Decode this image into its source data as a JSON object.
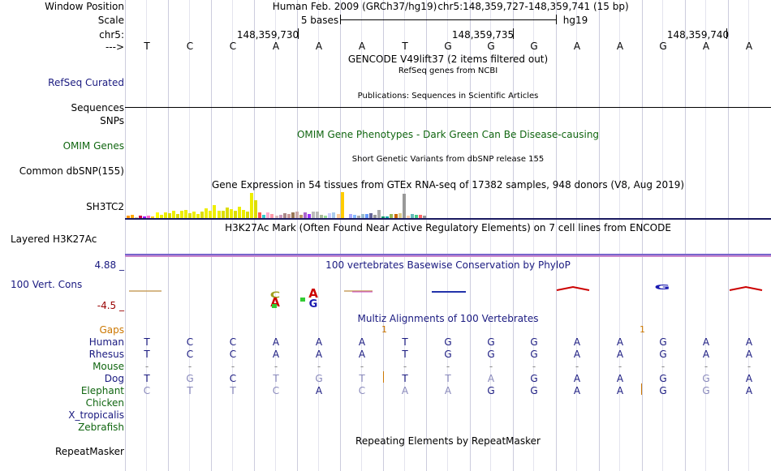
{
  "labels": {
    "window_position": "Window Position",
    "scale": "Scale",
    "chrom": "chr5:",
    "strand": "--->",
    "refseq": "RefSeq Curated",
    "sequences": "Sequences",
    "snps": "SNPs",
    "omim": "OMIM Genes",
    "dbsnp": "Common dbSNP(155)",
    "gtex_gene": "SH3TC2",
    "h3k27ac": "Layered H3K27Ac",
    "cons_max": "4.88 _",
    "cons_name": "100 Vert. Cons",
    "cons_min": "-4.5 _",
    "gaps": "Gaps",
    "repeatmasker": "RepeatMasker"
  },
  "header": {
    "assembly": "Human Feb. 2009 (GRCh37/hg19)",
    "position": "chr5:148,359,727-148,359,741 (15 bp)",
    "scale_text": "5 bases",
    "scale_db": "hg19",
    "coords": [
      "148,359,730",
      "148,359,735",
      "148,359,740"
    ]
  },
  "titles": {
    "gencode": "GENCODE V49lift37 (2 items filtered out)",
    "refseq": "RefSeq genes from NCBI",
    "publications": "Publications: Sequences in Scientific Articles",
    "omim": "OMIM Gene Phenotypes - Dark Green Can Be Disease-causing",
    "dbsnp": "Short Genetic Variants from dbSNP release 155",
    "gtex": "Gene Expression in 54 tissues from GTEx RNA-seq of 17382 samples, 948 donors (V8, Aug 2019)",
    "h3k27ac": "H3K27Ac Mark (Often Found Near Active Regulatory Elements) on 7 cell lines from ENCODE",
    "phylop": "100 vertebrates Basewise Conservation by PhyloP",
    "multiz": "Multiz Alignments of 100 Vertebrates",
    "repeatmasker": "Repeating Elements by RepeatMasker"
  },
  "sequence": [
    "T",
    "C",
    "C",
    "A",
    "A",
    "A",
    "T",
    "G",
    "G",
    "G",
    "A",
    "A",
    "G",
    "A",
    "A"
  ],
  "gap_marks": [
    "1",
    "1"
  ],
  "alignment": [
    {
      "species": "Human",
      "bases": [
        "T",
        "C",
        "C",
        "A",
        "A",
        "A",
        "T",
        "G",
        "G",
        "G",
        "A",
        "A",
        "G",
        "A",
        "A"
      ]
    },
    {
      "species": "Rhesus",
      "bases": [
        "T",
        "C",
        "C",
        "A",
        "A",
        "A",
        "T",
        "G",
        "G",
        "G",
        "A",
        "A",
        "G",
        "A",
        "A"
      ]
    },
    {
      "species": "Mouse",
      "bases": [
        "-",
        "-",
        "-",
        "-",
        "-",
        "-",
        "-",
        "-",
        "-",
        "-",
        "-",
        "-",
        "-",
        "-",
        "-"
      ]
    },
    {
      "species": "Dog",
      "bases": [
        "T",
        "G",
        "C",
        "T",
        "G",
        "T",
        "T",
        "T",
        "A",
        "G",
        "A",
        "A",
        "G",
        "G",
        "A"
      ]
    },
    {
      "species": "Elephant",
      "bases": [
        "C",
        "T",
        "T",
        "C",
        "A",
        "C",
        "A",
        "A",
        "G",
        "G",
        "A",
        "A",
        "G",
        "G",
        "A"
      ]
    },
    {
      "species": "Chicken",
      "bases": []
    },
    {
      "species": "X_tropicalis",
      "bases": []
    },
    {
      "species": "Zebrafish",
      "bases": []
    }
  ],
  "gtex_values": [
    3,
    4,
    1,
    3,
    2,
    3,
    2,
    7,
    4,
    7,
    6,
    9,
    5,
    9,
    10,
    6,
    8,
    5,
    8,
    12,
    9,
    16,
    9,
    9,
    13,
    11,
    9,
    14,
    10,
    8,
    31,
    22,
    7,
    4,
    7,
    5,
    3,
    4,
    6,
    5,
    7,
    8,
    4,
    7,
    5,
    8,
    8,
    4,
    3,
    6,
    7,
    5,
    32,
    2,
    5,
    4,
    3,
    5,
    5,
    6,
    4,
    10,
    2,
    2,
    5,
    5,
    6,
    30,
    3,
    5,
    4,
    4,
    3
  ],
  "gtex_colors": [
    "#ff9900",
    "#ffaa00",
    "#ddcc99",
    "#cc0044",
    "#9900ff",
    "#ff66cc",
    "#ffcc00",
    "#ffff00",
    "#eeee00",
    "#eeee00",
    "#dddd00",
    "#eeee00",
    "#dddd00",
    "#eeee00",
    "#eeee00",
    "#dddd00",
    "#eeee00",
    "#eeee00",
    "#dddd00",
    "#eeee00",
    "#eeee00",
    "#eeee00",
    "#eeee00",
    "#dddd00",
    "#dddd00",
    "#eeee00",
    "#dddd00",
    "#eeee00",
    "#eeee00",
    "#dddd00",
    "#eeee00",
    "#dddd00",
    "#ff5555",
    "#33cccc",
    "#ffaacc",
    "#ff99aa",
    "#ddbbbb",
    "#cc99bb",
    "#aa8888",
    "#cc9999",
    "#997755",
    "#ccaaaa",
    "#bb9966",
    "#aa66cc",
    "#9933ff",
    "#bbbbbb",
    "#bbbbbb",
    "#aabb99",
    "#99dd99",
    "#ccccff",
    "#aaccee",
    "#ffcc99",
    "#ffcc00",
    "#ffffff",
    "#aaaaff",
    "#88bbff",
    "#aaaaaa",
    "#99bbcc",
    "#6699ff",
    "#666699",
    "#999999",
    "#aaaaaa",
    "#009966",
    "#00aaaa",
    "#99bb55",
    "#cc6600",
    "#ddcc88",
    "#999999",
    "#ffccaa",
    "#66bbbb",
    "#44cc88",
    "#ff6666",
    "#999999"
  ],
  "colors": {
    "cons_max": "#1a1a80",
    "cons_min": "#990000",
    "gaps": "#cc7700"
  }
}
